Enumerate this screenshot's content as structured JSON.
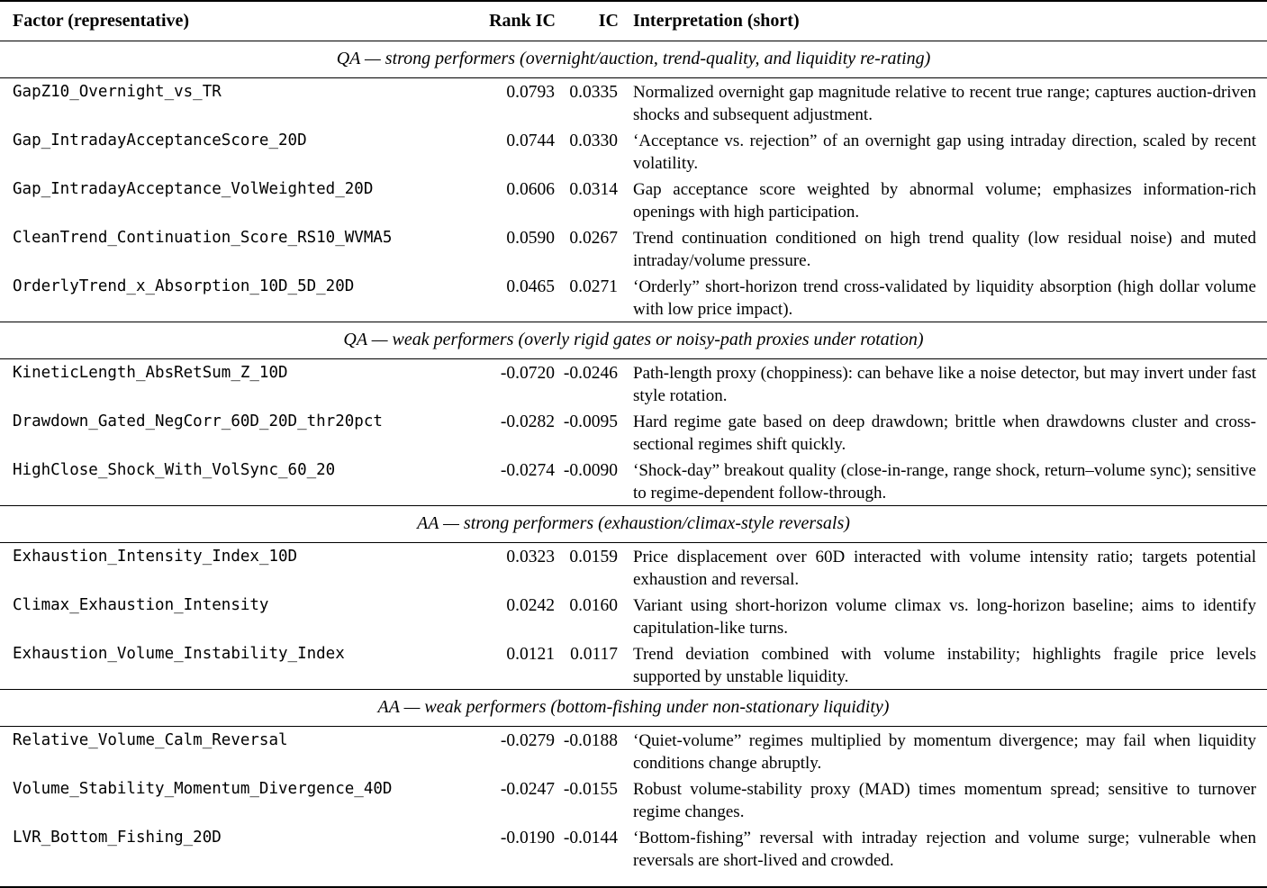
{
  "table": {
    "headers": {
      "factor": "Factor (representative)",
      "rank_ic": "Rank IC",
      "ic": "IC",
      "interpretation": "Interpretation (short)"
    },
    "sections": [
      {
        "title": "QA — strong performers (overnight/auction, trend-quality, and liquidity re-rating)",
        "rows": [
          {
            "factor": "GapZ10_Overnight_vs_TR",
            "rank_ic": "0.0793",
            "ic": "0.0335",
            "interpretation": "Normalized overnight gap magnitude relative to recent true range; captures auction-driven shocks and subsequent adjustment."
          },
          {
            "factor": "Gap_IntradayAcceptanceScore_20D",
            "rank_ic": "0.0744",
            "ic": "0.0330",
            "interpretation": "‘Acceptance vs. rejection” of an overnight gap using intraday direction, scaled by recent volatility."
          },
          {
            "factor": "Gap_IntradayAcceptance_VolWeighted_20D",
            "rank_ic": "0.0606",
            "ic": "0.0314",
            "interpretation": "Gap acceptance score weighted by abnormal volume; emphasizes information-rich openings with high participation."
          },
          {
            "factor": "CleanTrend_Continuation_Score_RS10_WVMA5",
            "rank_ic": "0.0590",
            "ic": "0.0267",
            "interpretation": "Trend continuation conditioned on high trend quality (low residual noise) and muted intraday/volume pressure."
          },
          {
            "factor": "OrderlyTrend_x_Absorption_10D_5D_20D",
            "rank_ic": "0.0465",
            "ic": "0.0271",
            "interpretation": "‘Orderly” short-horizon trend cross-validated by liquidity absorption (high dollar volume with low price impact)."
          }
        ]
      },
      {
        "title": "QA — weak performers (overly rigid gates or noisy-path proxies under rotation)",
        "rows": [
          {
            "factor": "KineticLength_AbsRetSum_Z_10D",
            "rank_ic": "-0.0720",
            "ic": "-0.0246",
            "interpretation": "Path-length proxy (choppiness): can behave like a noise detector, but may invert under fast style rotation."
          },
          {
            "factor": "Drawdown_Gated_NegCorr_60D_20D_thr20pct",
            "rank_ic": "-0.0282",
            "ic": "-0.0095",
            "interpretation": "Hard regime gate based on deep drawdown; brittle when drawdowns cluster and cross-sectional regimes shift quickly."
          },
          {
            "factor": "HighClose_Shock_With_VolSync_60_20",
            "rank_ic": "-0.0274",
            "ic": "-0.0090",
            "interpretation": "‘Shock-day” breakout quality (close-in-range, range shock, return–volume sync); sensitive to regime-dependent follow-through."
          }
        ]
      },
      {
        "title": "AA — strong performers (exhaustion/climax-style reversals)",
        "rows": [
          {
            "factor": "Exhaustion_Intensity_Index_10D",
            "rank_ic": "0.0323",
            "ic": "0.0159",
            "interpretation": "Price displacement over 60D interacted with volume intensity ratio; targets potential exhaustion and reversal."
          },
          {
            "factor": "Climax_Exhaustion_Intensity",
            "rank_ic": "0.0242",
            "ic": "0.0160",
            "interpretation": "Variant using short-horizon volume climax vs. long-horizon baseline; aims to identify capitulation-like turns."
          },
          {
            "factor": "Exhaustion_Volume_Instability_Index",
            "rank_ic": "0.0121",
            "ic": "0.0117",
            "interpretation": "Trend deviation combined with volume instability; highlights fragile price levels supported by unstable liquidity."
          }
        ]
      },
      {
        "title": "AA — weak performers (bottom-fishing under non-stationary liquidity)",
        "rows": [
          {
            "factor": "Relative_Volume_Calm_Reversal",
            "rank_ic": "-0.0279",
            "ic": "-0.0188",
            "interpretation": "‘Quiet-volume” regimes multiplied by momentum divergence; may fail when liquidity conditions change abruptly."
          },
          {
            "factor": "Volume_Stability_Momentum_Divergence_40D",
            "rank_ic": "-0.0247",
            "ic": "-0.0155",
            "interpretation": "Robust volume-stability proxy (MAD) times momentum spread; sensitive to turnover regime changes."
          },
          {
            "factor": "LVR_Bottom_Fishing_20D",
            "rank_ic": "-0.0190",
            "ic": "-0.0144",
            "interpretation": "‘Bottom-fishing” reversal with intraday rejection and volume surge; vulnerable when reversals are short-lived and crowded."
          }
        ]
      }
    ]
  }
}
